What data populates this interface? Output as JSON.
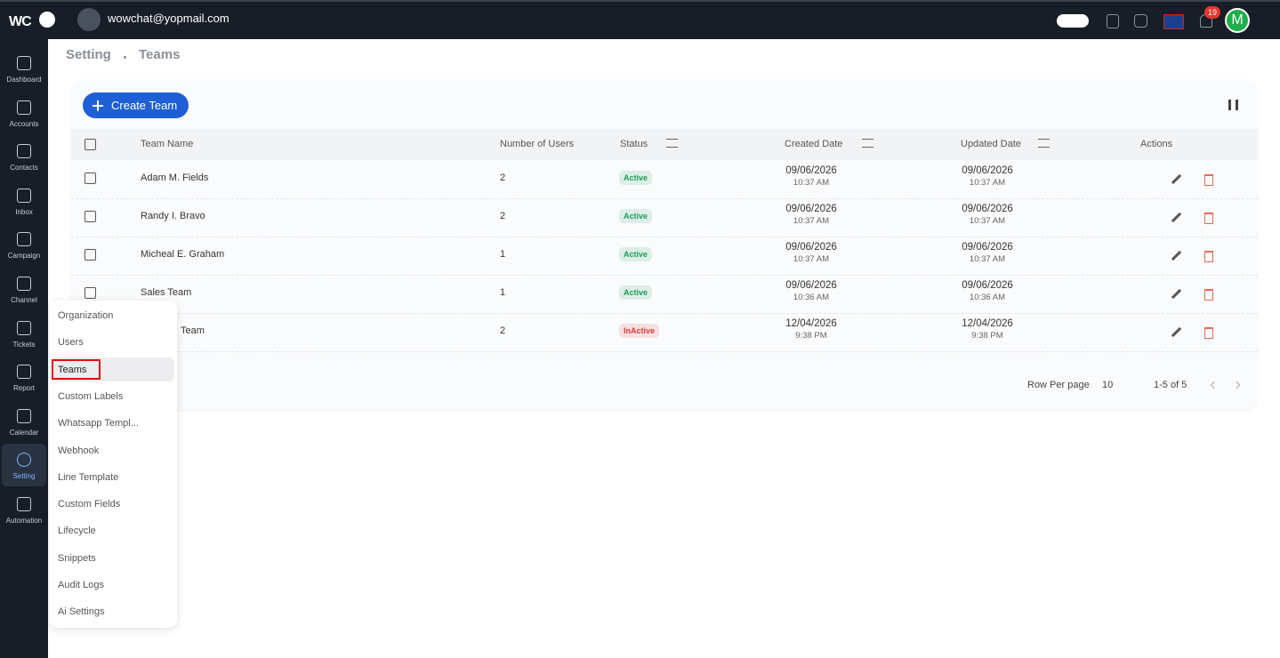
{
  "topbar": {
    "logo": "WC",
    "email": "wowchat@yopmail.com",
    "notifications": "19",
    "avatar": "M"
  },
  "sidebar": [
    "Dashboard",
    "Accounts",
    "Contacts",
    "Inbox",
    "Campaign",
    "Channel",
    "Tickets",
    "Report",
    "Calendar",
    "Setting",
    "Automation"
  ],
  "sidebar_active": 9,
  "breadcrumb": [
    "Setting",
    "Teams"
  ],
  "create_button": "Create Team",
  "table": {
    "columns": [
      "Team Name",
      "Number of Users",
      "Status",
      "Created Date",
      "Updated Date",
      "Actions"
    ],
    "rows": [
      {
        "name": "Adam M. Fields",
        "users": 2,
        "status": "Active",
        "status_color": "#1e9e5a",
        "created_date": "09/06/2026",
        "created_time": "10:37 AM",
        "updated_date": "09/06/2026",
        "updated_time": "10:37 AM"
      },
      {
        "name": "Randy I. Bravo",
        "users": 2,
        "status": "Active",
        "status_color": "#1e9e5a",
        "created_date": "09/06/2026",
        "created_time": "10:37 AM",
        "updated_date": "09/06/2026",
        "updated_time": "10:37 AM"
      },
      {
        "name": "Micheal E. Graham",
        "users": 1,
        "status": "Active",
        "status_color": "#1e9e5a",
        "created_date": "09/06/2026",
        "created_time": "10:37 AM",
        "updated_date": "09/06/2026",
        "updated_time": "10:37 AM"
      },
      {
        "name": "Sales Team",
        "users": 1,
        "status": "Active",
        "status_color": "#1e9e5a",
        "created_date": "09/06/2026",
        "created_time": "10:36 AM",
        "updated_date": "09/06/2026",
        "updated_time": "10:36 AM"
      },
      {
        "name": "Team",
        "users": 2,
        "status": "InActive",
        "status_color": "#d93a3a",
        "created_date": "12/04/2026",
        "created_time": "9:38 PM",
        "updated_date": "12/04/2026",
        "updated_time": "9:38 PM"
      }
    ]
  },
  "pagination": {
    "rows_per_page_label": "Row Per page",
    "rows_per_page": "10",
    "range": "1-5 of 5"
  },
  "settings_menu": {
    "items": [
      "Organization",
      "Users",
      "Teams",
      "Custom Labels",
      "Whatsapp Templ...",
      "Webhook",
      "Line Template",
      "Custom Fields",
      "Lifecycle",
      "Snippets",
      "Audit Logs",
      "Ai Settings"
    ],
    "selected": 2
  }
}
